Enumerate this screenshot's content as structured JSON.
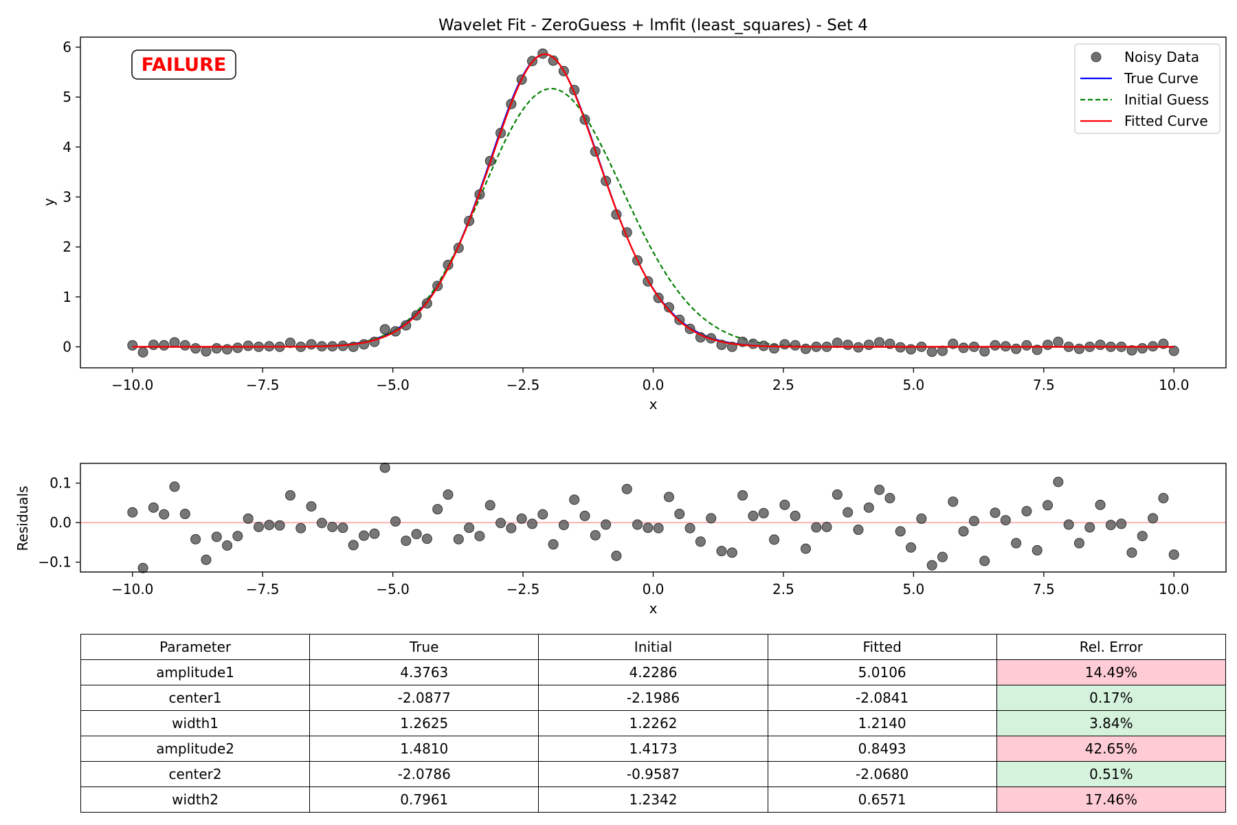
{
  "chart_data": [
    {
      "type": "scatter",
      "panel": "main",
      "title": "Wavelet Fit - ZeroGuess + lmfit (least_squares) - Set 4",
      "xlabel": "x",
      "ylabel": "y",
      "xlim": [
        -11,
        11
      ],
      "ylim": [
        -0.42,
        6.2
      ],
      "xticks": [
        -10,
        -7.5,
        -5,
        -2.5,
        0,
        2.5,
        5,
        7.5,
        10
      ],
      "xtick_labels": [
        "−10.0",
        "−7.5",
        "−5.0",
        "−2.5",
        "0.0",
        "2.5",
        "5.0",
        "7.5",
        "10.0"
      ],
      "yticks": [
        0,
        1,
        2,
        3,
        4,
        5,
        6
      ],
      "ytick_labels": [
        "0",
        "1",
        "2",
        "3",
        "4",
        "5",
        "6"
      ],
      "grid": false,
      "legend_position": "top-right",
      "badge": "FAILURE",
      "series": [
        {
          "name": "Noisy Data",
          "style": "markers",
          "color": "#555555",
          "y": [
            0.03,
            -0.11,
            0.04,
            0.03,
            0.09,
            0.03,
            -0.03,
            -0.09,
            -0.03,
            -0.05,
            -0.02,
            0.02,
            0.0,
            0.01,
            0.0,
            0.08,
            0.0,
            0.05,
            0.01,
            0.01,
            0.02,
            0.0,
            0.05,
            0.1,
            0.35,
            0.31,
            0.43,
            0.63,
            0.87,
            1.22,
            1.64,
            1.98,
            2.52,
            3.05,
            3.72,
            4.28,
            4.86,
            5.35,
            5.72,
            5.87,
            5.73,
            5.52,
            5.14,
            4.55,
            3.91,
            3.32,
            2.65,
            2.29,
            1.73,
            1.31,
            0.98,
            0.79,
            0.54,
            0.36,
            0.19,
            0.17,
            0.04,
            0.0,
            0.1,
            0.06,
            0.02,
            -0.03,
            0.05,
            0.03,
            -0.04,
            0.0,
            0.0,
            0.08,
            0.04,
            -0.01,
            0.04,
            0.09,
            0.06,
            -0.01,
            -0.05,
            0.0,
            -0.1,
            -0.08,
            0.06,
            -0.02,
            0.0,
            -0.09,
            0.03,
            0.01,
            -0.04,
            0.03,
            -0.06,
            0.04,
            0.1,
            0.0,
            -0.04,
            0.0,
            0.04,
            0.0,
            0.0,
            -0.07,
            -0.03,
            0.01,
            0.06,
            -0.08
          ]
        },
        {
          "name": "True Curve",
          "style": "line",
          "color": "#0000ff"
        },
        {
          "name": "Initial Guess",
          "style": "dashed",
          "color": "#008000"
        },
        {
          "name": "Fitted Curve",
          "style": "line",
          "color": "#ff0000"
        }
      ]
    },
    {
      "type": "scatter",
      "panel": "residuals",
      "xlabel": "x",
      "ylabel": "Residuals",
      "xlim": [
        -11,
        11
      ],
      "ylim": [
        -0.125,
        0.15
      ],
      "xticks": [
        -10,
        -7.5,
        -5,
        -2.5,
        0,
        2.5,
        5,
        7.5,
        10
      ],
      "xtick_labels": [
        "−10.0",
        "−7.5",
        "−5.0",
        "−2.5",
        "0.0",
        "2.5",
        "5.0",
        "7.5",
        "10.0"
      ],
      "yticks": [
        0.1,
        0.0,
        -0.1
      ],
      "ytick_labels": [
        "0.1",
        "0.0",
        "−0.1"
      ],
      "zero_line_color": "#ffb3b3",
      "series": [
        {
          "style": "markers",
          "color": "#555555",
          "y": [
            0.026,
            -0.115,
            0.038,
            0.021,
            0.091,
            0.022,
            -0.042,
            -0.094,
            -0.036,
            -0.058,
            -0.034,
            0.01,
            -0.011,
            -0.006,
            -0.007,
            0.069,
            -0.014,
            0.041,
            -0.001,
            -0.011,
            -0.013,
            -0.057,
            -0.033,
            -0.028,
            0.139,
            0.003,
            -0.046,
            -0.029,
            -0.041,
            0.034,
            0.071,
            -0.042,
            -0.013,
            -0.034,
            0.044,
            -0.001,
            -0.014,
            0.01,
            -0.003,
            0.021,
            -0.055,
            -0.006,
            0.058,
            0.017,
            -0.032,
            -0.005,
            -0.084,
            0.085,
            -0.005,
            -0.013,
            -0.014,
            0.065,
            0.022,
            -0.014,
            -0.048,
            0.011,
            -0.072,
            -0.076,
            0.069,
            0.017,
            0.024,
            -0.043,
            0.045,
            0.017,
            -0.066,
            -0.012,
            -0.011,
            0.071,
            0.026,
            -0.018,
            0.038,
            0.083,
            0.062,
            -0.022,
            -0.063,
            0.01,
            -0.108,
            -0.087,
            0.053,
            -0.022,
            0.004,
            -0.097,
            0.025,
            0.006,
            -0.052,
            0.029,
            -0.07,
            0.044,
            0.103,
            -0.005,
            -0.052,
            -0.012,
            0.045,
            -0.006,
            -0.003,
            -0.076,
            -0.034,
            0.011,
            0.062,
            -0.081
          ]
        }
      ]
    },
    {
      "type": "table",
      "panel": "parameters",
      "columns": [
        "Parameter",
        "True",
        "Initial",
        "Fitted",
        "Rel. Error"
      ],
      "rows": [
        {
          "cells": [
            "amplitude1",
            "4.3763",
            "4.2286",
            "5.0106",
            "14.49%"
          ],
          "error_color": "#ffccd5"
        },
        {
          "cells": [
            "center1",
            "-2.0877",
            "-2.1986",
            "-2.0841",
            "0.17%"
          ],
          "error_color": "#d5f2dc"
        },
        {
          "cells": [
            "width1",
            "1.2625",
            "1.2262",
            "1.2140",
            "3.84%"
          ],
          "error_color": "#d5f2dc"
        },
        {
          "cells": [
            "amplitude2",
            "1.4810",
            "1.4173",
            "0.8493",
            "42.65%"
          ],
          "error_color": "#ffccd5"
        },
        {
          "cells": [
            "center2",
            "-2.0786",
            "-0.9587",
            "-2.0680",
            "0.51%"
          ],
          "error_color": "#d5f2dc"
        },
        {
          "cells": [
            "width2",
            "0.7961",
            "1.2342",
            "0.6571",
            "17.46%"
          ],
          "error_color": "#ffccd5"
        }
      ]
    }
  ]
}
